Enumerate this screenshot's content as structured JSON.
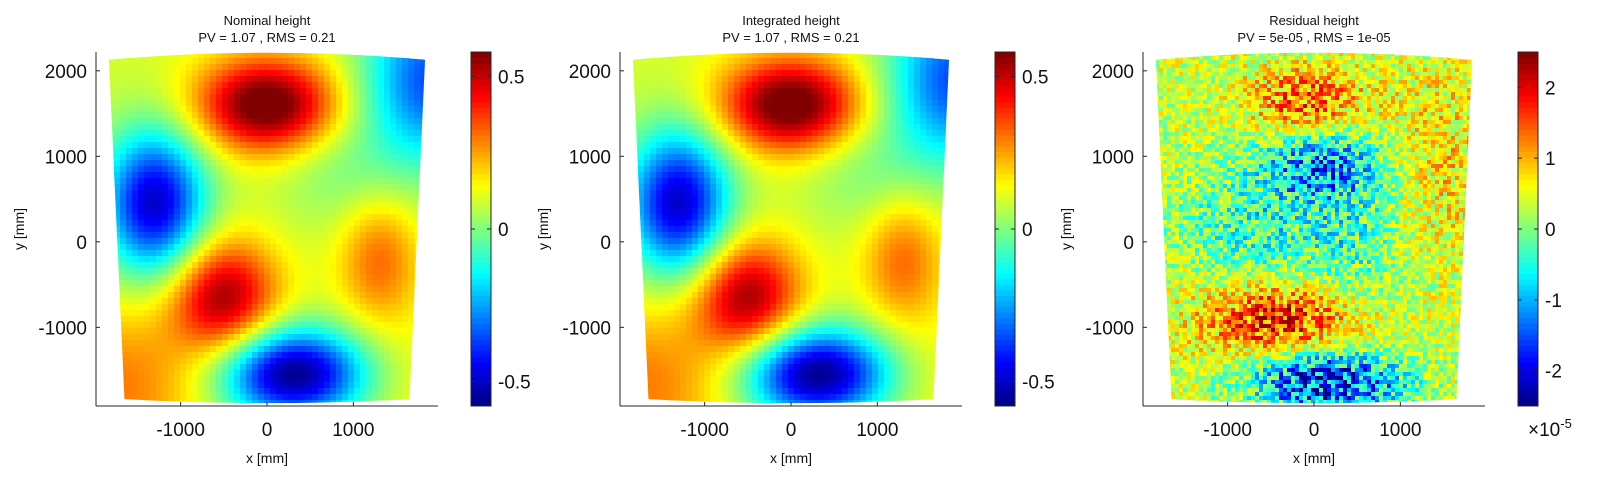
{
  "chart_data": [
    {
      "type": "heatmap",
      "title": "Nominal height",
      "subtitle": "PV = 1.07 , RMS = 0.21",
      "xlabel": "x [mm]",
      "ylabel": "y [mm]",
      "xlim": [
        -1980,
        1980
      ],
      "ylim": [
        -1920,
        2220
      ],
      "xticks": [
        -1000,
        0,
        1000
      ],
      "xtick_labels": [
        "-1000",
        "0",
        "1000"
      ],
      "yticks": [
        -1000,
        0,
        1000,
        2000
      ],
      "ytick_labels": [
        "-1000",
        "0",
        "1000",
        "2000"
      ],
      "colorbar": {
        "range": [
          -0.58,
          0.58
        ],
        "ticks": [
          -0.5,
          0,
          0.5
        ],
        "tick_labels": [
          "-0.5",
          "0",
          "0.5"
        ],
        "colormap": "jet"
      },
      "field": {
        "kind": "smooth",
        "offset": 0.1,
        "blobs": [
          {
            "x": 0,
            "y": 1600,
            "sx": 560,
            "sy": 380,
            "a": 0.55
          },
          {
            "x": -500,
            "y": -650,
            "sx": 430,
            "sy": 470,
            "a": 0.44
          },
          {
            "x": 1300,
            "y": -200,
            "sx": 330,
            "sy": 540,
            "a": 0.22
          },
          {
            "x": -1750,
            "y": -1700,
            "sx": 800,
            "sy": 700,
            "a": 0.2
          },
          {
            "x": -1300,
            "y": 450,
            "sx": 420,
            "sy": 600,
            "a": -0.6
          },
          {
            "x": 300,
            "y": -1550,
            "sx": 600,
            "sy": 380,
            "a": -0.68
          },
          {
            "x": 1900,
            "y": 1900,
            "sx": 550,
            "sy": 700,
            "a": -0.45
          },
          {
            "x": 900,
            "y": 800,
            "sx": 550,
            "sy": 500,
            "a": -0.1
          },
          {
            "x": 1800,
            "y": -1700,
            "sx": 600,
            "sy": 600,
            "a": 0.05
          }
        ]
      }
    },
    {
      "type": "heatmap",
      "title": "Integrated height",
      "subtitle": "PV = 1.07 , RMS = 0.21",
      "xlabel": "x [mm]",
      "ylabel": "y [mm]",
      "xlim": [
        -1980,
        1980
      ],
      "ylim": [
        -1920,
        2220
      ],
      "xticks": [
        -1000,
        0,
        1000
      ],
      "xtick_labels": [
        "-1000",
        "0",
        "1000"
      ],
      "yticks": [
        -1000,
        0,
        1000,
        2000
      ],
      "ytick_labels": [
        "-1000",
        "0",
        "1000",
        "2000"
      ],
      "colorbar": {
        "range": [
          -0.58,
          0.58
        ],
        "ticks": [
          -0.5,
          0,
          0.5
        ],
        "tick_labels": [
          "-0.5",
          "0",
          "0.5"
        ],
        "colormap": "jet"
      },
      "field": {
        "kind": "smooth",
        "offset": 0.1,
        "blobs": [
          {
            "x": 0,
            "y": 1600,
            "sx": 560,
            "sy": 380,
            "a": 0.55
          },
          {
            "x": -500,
            "y": -650,
            "sx": 430,
            "sy": 470,
            "a": 0.44
          },
          {
            "x": 1300,
            "y": -200,
            "sx": 330,
            "sy": 540,
            "a": 0.22
          },
          {
            "x": -1750,
            "y": -1700,
            "sx": 800,
            "sy": 700,
            "a": 0.2
          },
          {
            "x": -1300,
            "y": 450,
            "sx": 420,
            "sy": 600,
            "a": -0.6
          },
          {
            "x": 300,
            "y": -1550,
            "sx": 600,
            "sy": 380,
            "a": -0.68
          },
          {
            "x": 1900,
            "y": 1900,
            "sx": 550,
            "sy": 700,
            "a": -0.45
          },
          {
            "x": 900,
            "y": 800,
            "sx": 550,
            "sy": 500,
            "a": -0.1
          },
          {
            "x": 1800,
            "y": -1700,
            "sx": 600,
            "sy": 600,
            "a": 0.05
          }
        ]
      }
    },
    {
      "type": "heatmap",
      "title": "Residual height",
      "subtitle": "PV = 5e-05 , RMS = 1e-05",
      "xlabel": "x [mm]",
      "ylabel": "y [mm]",
      "xlim": [
        -1980,
        1980
      ],
      "ylim": [
        -1920,
        2220
      ],
      "xticks": [
        -1000,
        0,
        1000
      ],
      "xtick_labels": [
        "-1000",
        "0",
        "1000"
      ],
      "yticks": [
        -1000,
        0,
        1000,
        2000
      ],
      "ytick_labels": [
        "-1000",
        "0",
        "1000",
        "2000"
      ],
      "colorbar": {
        "range": [
          -2.5,
          2.5
        ],
        "ticks": [
          -2,
          -1,
          0,
          1,
          2
        ],
        "tick_labels": [
          "-2",
          "-1",
          "0",
          "1",
          "2"
        ],
        "colormap": "jet",
        "multiplier_base": "×10",
        "multiplier_exp": "-5"
      },
      "field": {
        "kind": "noisy",
        "offset": 0.35,
        "noise": 0.55,
        "blobs": [
          {
            "x": -100,
            "y": 1650,
            "sx": 450,
            "sy": 260,
            "a": 1.1
          },
          {
            "x": -400,
            "y": -900,
            "sx": 650,
            "sy": 300,
            "a": 1.4
          },
          {
            "x": 150,
            "y": -1650,
            "sx": 600,
            "sy": 250,
            "a": -2.2
          },
          {
            "x": 100,
            "y": 900,
            "sx": 500,
            "sy": 280,
            "a": -1.2
          },
          {
            "x": -600,
            "y": 200,
            "sx": 700,
            "sy": 550,
            "a": -0.7
          },
          {
            "x": 500,
            "y": 0,
            "sx": 400,
            "sy": 700,
            "a": -0.5
          },
          {
            "x": 1500,
            "y": 1000,
            "sx": 500,
            "sy": 800,
            "a": 0.4
          }
        ]
      }
    }
  ]
}
